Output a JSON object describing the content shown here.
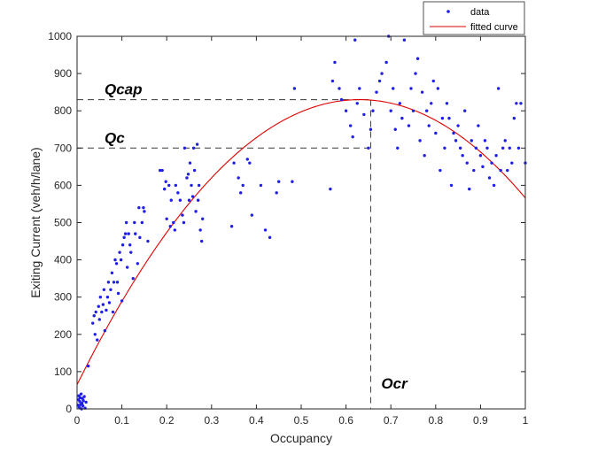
{
  "chart_data": {
    "type": "scatter",
    "title": "",
    "xlabel": "Occupancy",
    "ylabel": "Exiting Current (veh/h/lane)",
    "xlim": [
      0,
      1
    ],
    "ylim": [
      0,
      1000
    ],
    "x_ticks": [
      "0",
      "0.1",
      "0.2",
      "0.3",
      "0.4",
      "0.5",
      "0.6",
      "0.7",
      "0.8",
      "0.9",
      "1"
    ],
    "y_ticks": [
      "0",
      "100",
      "200",
      "300",
      "400",
      "500",
      "600",
      "700",
      "800",
      "900",
      "1000"
    ],
    "grid": false,
    "legend_position": "top-right",
    "colors": {
      "data": "#1f1fe6",
      "fit": "#e00000"
    },
    "series": [
      {
        "name": "data",
        "marker": "point",
        "points": [
          [
            0.002,
            10
          ],
          [
            0.003,
            25
          ],
          [
            0.004,
            35
          ],
          [
            0.005,
            5
          ],
          [
            0.006,
            20
          ],
          [
            0.007,
            30
          ],
          [
            0.008,
            12
          ],
          [
            0.009,
            40
          ],
          [
            0.01,
            0
          ],
          [
            0.011,
            15
          ],
          [
            0.012,
            28
          ],
          [
            0.013,
            8
          ],
          [
            0.014,
            22
          ],
          [
            0.016,
            33
          ],
          [
            0.018,
            2
          ],
          [
            0.02,
            18
          ],
          [
            0.025,
            115
          ],
          [
            0.035,
            230
          ],
          [
            0.038,
            250
          ],
          [
            0.04,
            200
          ],
          [
            0.042,
            260
          ],
          [
            0.045,
            185
          ],
          [
            0.048,
            275
          ],
          [
            0.05,
            240
          ],
          [
            0.052,
            300
          ],
          [
            0.055,
            260
          ],
          [
            0.058,
            280
          ],
          [
            0.06,
            320
          ],
          [
            0.062,
            210
          ],
          [
            0.065,
            265
          ],
          [
            0.068,
            300
          ],
          [
            0.07,
            340
          ],
          [
            0.072,
            285
          ],
          [
            0.075,
            320
          ],
          [
            0.078,
            365
          ],
          [
            0.08,
            260
          ],
          [
            0.082,
            340
          ],
          [
            0.085,
            400
          ],
          [
            0.088,
            390
          ],
          [
            0.09,
            340
          ],
          [
            0.092,
            310
          ],
          [
            0.095,
            420
          ],
          [
            0.098,
            400
          ],
          [
            0.1,
            290
          ],
          [
            0.102,
            440
          ],
          [
            0.105,
            460
          ],
          [
            0.108,
            470
          ],
          [
            0.11,
            500
          ],
          [
            0.112,
            380
          ],
          [
            0.115,
            470
          ],
          [
            0.118,
            440
          ],
          [
            0.12,
            420
          ],
          [
            0.125,
            350
          ],
          [
            0.128,
            500
          ],
          [
            0.13,
            470
          ],
          [
            0.135,
            390
          ],
          [
            0.138,
            540
          ],
          [
            0.14,
            460
          ],
          [
            0.145,
            500
          ],
          [
            0.148,
            540
          ],
          [
            0.15,
            530
          ],
          [
            0.158,
            450
          ],
          [
            0.185,
            640
          ],
          [
            0.19,
            640
          ],
          [
            0.195,
            590
          ],
          [
            0.198,
            610
          ],
          [
            0.2,
            510
          ],
          [
            0.205,
            600
          ],
          [
            0.208,
            490
          ],
          [
            0.21,
            560
          ],
          [
            0.215,
            500
          ],
          [
            0.218,
            480
          ],
          [
            0.22,
            600
          ],
          [
            0.225,
            580
          ],
          [
            0.23,
            560
          ],
          [
            0.235,
            520
          ],
          [
            0.238,
            500
          ],
          [
            0.24,
            700
          ],
          [
            0.245,
            620
          ],
          [
            0.248,
            630
          ],
          [
            0.25,
            560
          ],
          [
            0.252,
            660
          ],
          [
            0.255,
            600
          ],
          [
            0.258,
            570
          ],
          [
            0.26,
            700
          ],
          [
            0.262,
            640
          ],
          [
            0.265,
            530
          ],
          [
            0.268,
            710
          ],
          [
            0.27,
            560
          ],
          [
            0.272,
            600
          ],
          [
            0.275,
            480
          ],
          [
            0.278,
            450
          ],
          [
            0.28,
            510
          ],
          [
            0.345,
            490
          ],
          [
            0.35,
            660
          ],
          [
            0.36,
            620
          ],
          [
            0.365,
            580
          ],
          [
            0.37,
            600
          ],
          [
            0.38,
            670
          ],
          [
            0.385,
            660
          ],
          [
            0.39,
            520
          ],
          [
            0.41,
            600
          ],
          [
            0.42,
            480
          ],
          [
            0.43,
            460
          ],
          [
            0.445,
            580
          ],
          [
            0.45,
            610
          ],
          [
            0.48,
            610
          ],
          [
            0.485,
            860
          ],
          [
            0.565,
            590
          ],
          [
            0.57,
            880
          ],
          [
            0.575,
            930
          ],
          [
            0.585,
            860
          ],
          [
            0.59,
            830
          ],
          [
            0.6,
            800
          ],
          [
            0.61,
            760
          ],
          [
            0.615,
            730
          ],
          [
            0.62,
            990
          ],
          [
            0.625,
            820
          ],
          [
            0.63,
            860
          ],
          [
            0.64,
            790
          ],
          [
            0.65,
            700
          ],
          [
            0.655,
            750
          ],
          [
            0.66,
            800
          ],
          [
            0.668,
            850
          ],
          [
            0.675,
            880
          ],
          [
            0.68,
            900
          ],
          [
            0.69,
            930
          ],
          [
            0.695,
            1000
          ],
          [
            0.7,
            800
          ],
          [
            0.705,
            860
          ],
          [
            0.71,
            750
          ],
          [
            0.715,
            700
          ],
          [
            0.72,
            820
          ],
          [
            0.725,
            780
          ],
          [
            0.73,
            990
          ],
          [
            0.74,
            760
          ],
          [
            0.745,
            860
          ],
          [
            0.75,
            800
          ],
          [
            0.755,
            900
          ],
          [
            0.76,
            940
          ],
          [
            0.765,
            720
          ],
          [
            0.77,
            850
          ],
          [
            0.775,
            680
          ],
          [
            0.78,
            800
          ],
          [
            0.785,
            760
          ],
          [
            0.79,
            820
          ],
          [
            0.795,
            880
          ],
          [
            0.8,
            740
          ],
          [
            0.805,
            860
          ],
          [
            0.81,
            640
          ],
          [
            0.815,
            780
          ],
          [
            0.82,
            700
          ],
          [
            0.825,
            820
          ],
          [
            0.83,
            780
          ],
          [
            0.835,
            600
          ],
          [
            0.84,
            740
          ],
          [
            0.845,
            720
          ],
          [
            0.85,
            760
          ],
          [
            0.855,
            700
          ],
          [
            0.86,
            680
          ],
          [
            0.865,
            800
          ],
          [
            0.87,
            660
          ],
          [
            0.875,
            590
          ],
          [
            0.88,
            720
          ],
          [
            0.885,
            640
          ],
          [
            0.89,
            700
          ],
          [
            0.895,
            760
          ],
          [
            0.9,
            680
          ],
          [
            0.905,
            650
          ],
          [
            0.91,
            720
          ],
          [
            0.915,
            700
          ],
          [
            0.92,
            620
          ],
          [
            0.925,
            660
          ],
          [
            0.93,
            600
          ],
          [
            0.935,
            680
          ],
          [
            0.94,
            860
          ],
          [
            0.945,
            640
          ],
          [
            0.95,
            700
          ],
          [
            0.955,
            720
          ],
          [
            0.96,
            640
          ],
          [
            0.965,
            700
          ],
          [
            0.97,
            660
          ],
          [
            0.975,
            780
          ],
          [
            0.98,
            820
          ],
          [
            0.985,
            700
          ],
          [
            0.99,
            820
          ],
          [
            1.0,
            660
          ]
        ]
      },
      {
        "name": "fitted curve",
        "type": "line",
        "model": "quadratic",
        "vertex": [
          0.63,
          830
        ],
        "y_at_0": 65,
        "points": [
          [
            0,
            65
          ],
          [
            0.05,
            188
          ],
          [
            0.1,
            297
          ],
          [
            0.15,
            392
          ],
          [
            0.2,
            473
          ],
          [
            0.25,
            540
          ],
          [
            0.3,
            593
          ],
          [
            0.35,
            632
          ],
          [
            0.4,
            653
          ],
          [
            0.45,
            697
          ],
          [
            0.5,
            781
          ],
          [
            0.55,
            818
          ],
          [
            0.6,
            828
          ],
          [
            0.63,
            830
          ],
          [
            0.7,
            824
          ],
          [
            0.75,
            806
          ],
          [
            0.8,
            776
          ],
          [
            0.85,
            735
          ],
          [
            0.9,
            683
          ],
          [
            0.95,
            640
          ],
          [
            1.0,
            605
          ]
        ]
      }
    ],
    "reference_lines": [
      {
        "label": "Qcap",
        "axis": "y",
        "value": 830,
        "x_end": 0.65
      },
      {
        "label": "Qc",
        "axis": "y",
        "value": 700,
        "x_end": 0.65
      },
      {
        "label": "Ocr",
        "axis": "x",
        "value": 0.655,
        "y_end": 830
      }
    ]
  }
}
